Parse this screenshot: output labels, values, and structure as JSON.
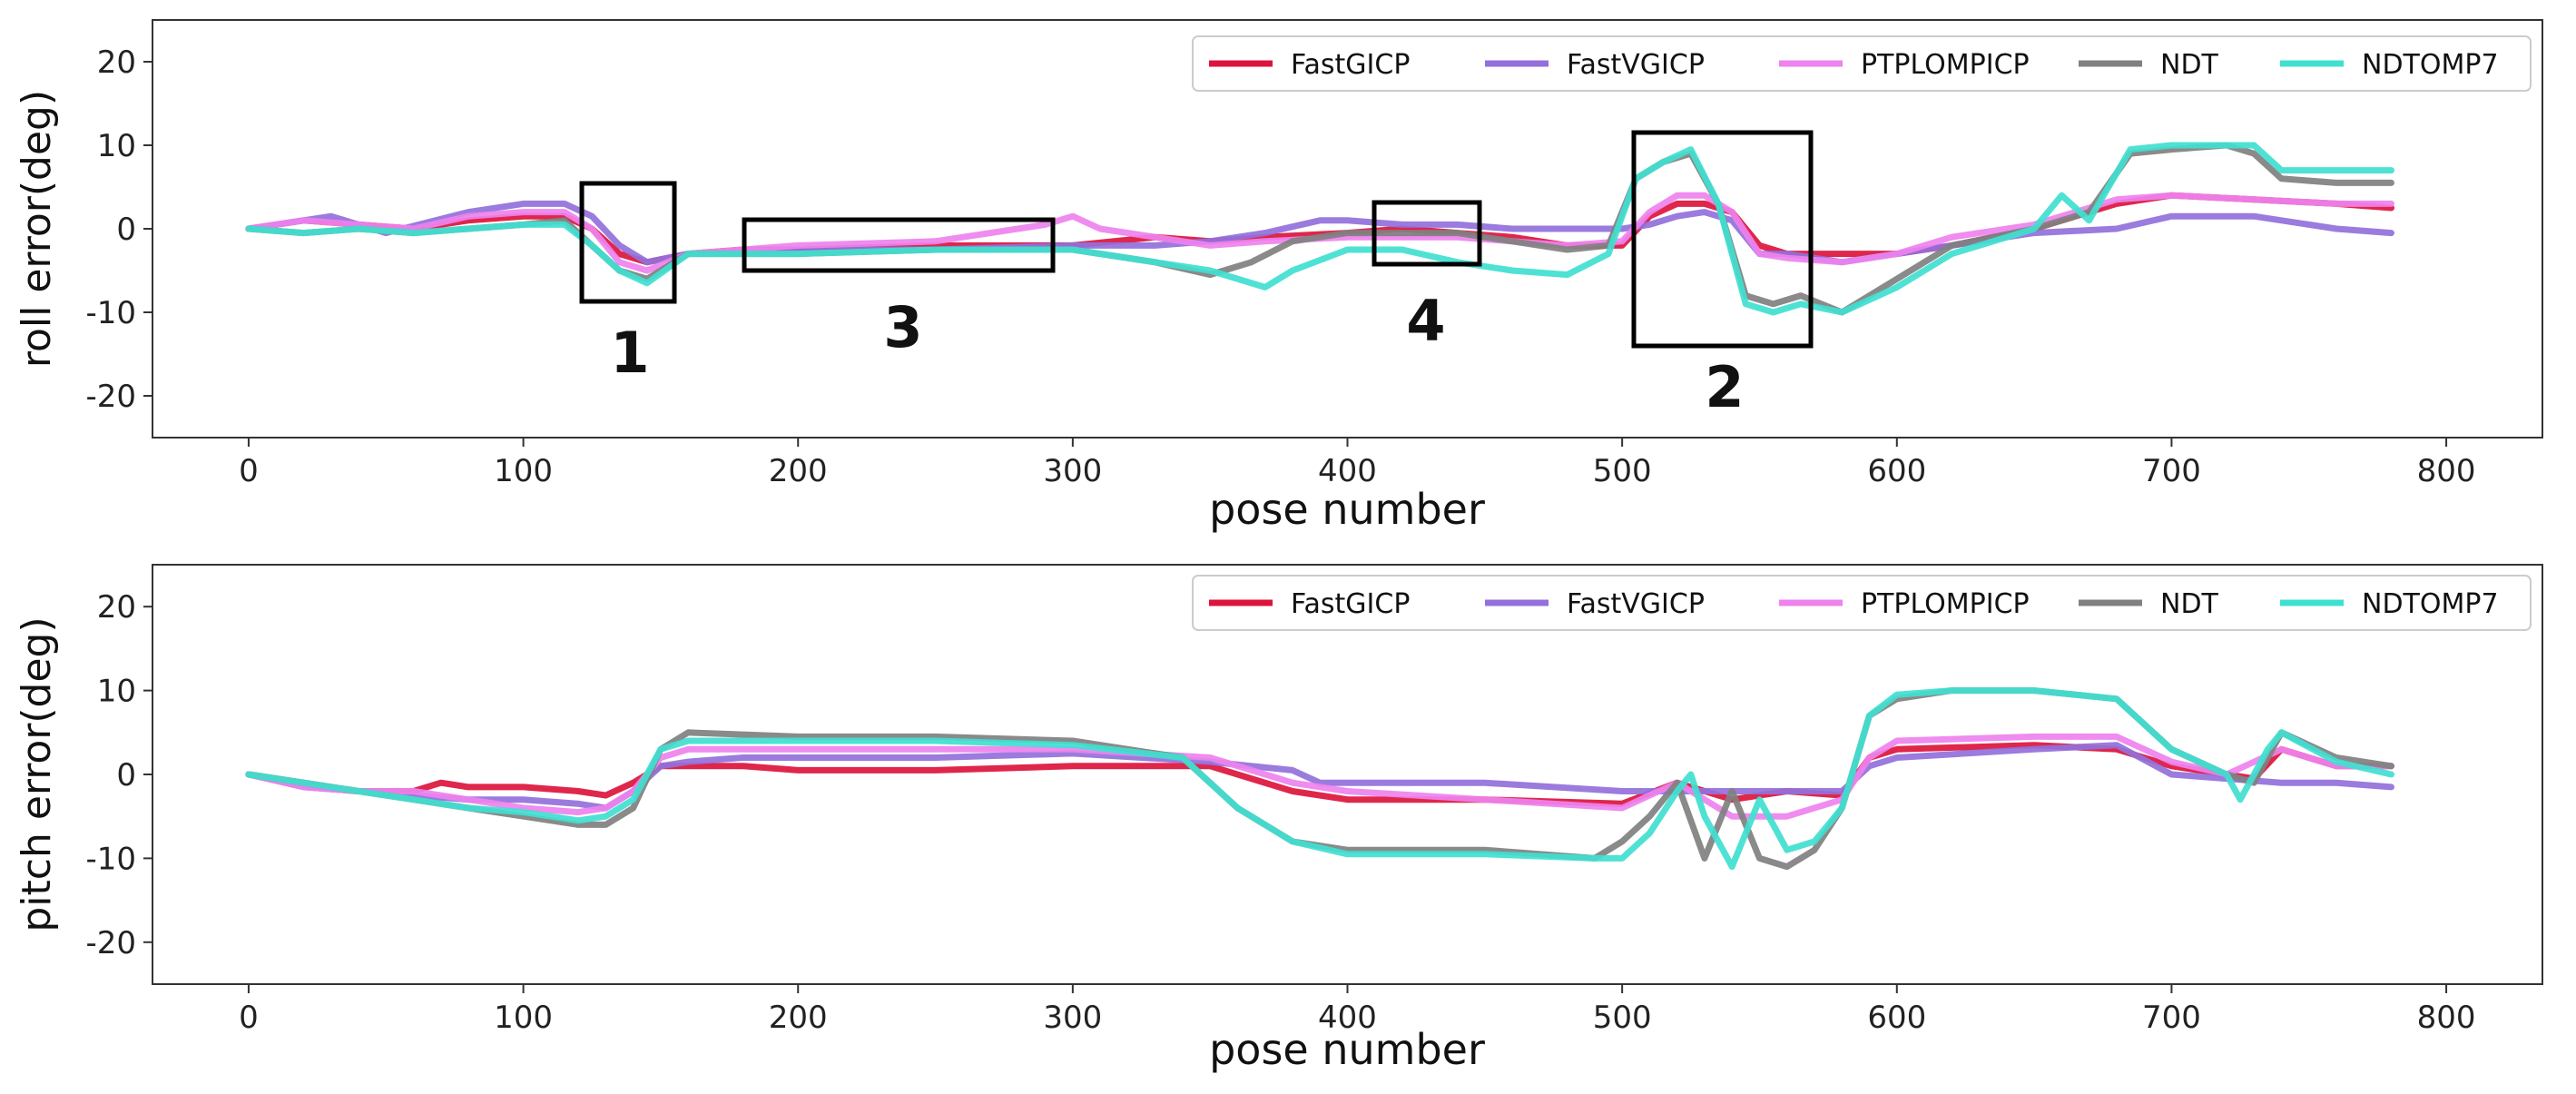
{
  "chart_data": [
    {
      "type": "line",
      "xlabel": "pose number",
      "ylabel": "roll error(deg)",
      "xlim": [
        -35,
        835
      ],
      "ylim": [
        -25,
        25
      ],
      "xticks": [
        0,
        100,
        200,
        300,
        400,
        500,
        600,
        700,
        800
      ],
      "yticks": [
        20,
        10,
        0,
        -10,
        -20
      ],
      "grid": false,
      "legend_position": "top-right",
      "series": [
        {
          "name": "FastGICP",
          "color": "#dc143c",
          "x": [
            0,
            20,
            40,
            60,
            80,
            100,
            115,
            125,
            135,
            145,
            160,
            180,
            200,
            250,
            300,
            330,
            350,
            370,
            400,
            420,
            440,
            460,
            480,
            500,
            510,
            520,
            530,
            540,
            550,
            560,
            580,
            600,
            620,
            650,
            680,
            700,
            730,
            760,
            780
          ],
          "y": [
            0,
            1,
            0.5,
            0,
            1,
            1.5,
            1.5,
            0,
            -3,
            -4,
            -3,
            -2.5,
            -2.5,
            -2,
            -2,
            -1,
            -1.5,
            -1,
            -0.5,
            0,
            -0.5,
            -1,
            -2,
            -2,
            1.5,
            3,
            3,
            2,
            -2,
            -3,
            -3,
            -3,
            -2,
            0,
            3,
            4,
            3.5,
            3,
            2.5
          ]
        },
        {
          "name": "FastVGICP",
          "color": "#9370db",
          "x": [
            0,
            20,
            30,
            50,
            80,
            100,
            115,
            125,
            135,
            145,
            160,
            200,
            250,
            300,
            330,
            350,
            370,
            390,
            400,
            420,
            440,
            460,
            480,
            500,
            510,
            520,
            530,
            540,
            550,
            560,
            580,
            600,
            620,
            650,
            680,
            700,
            730,
            760,
            780
          ],
          "y": [
            0,
            1,
            1.5,
            -0.5,
            2,
            3,
            3,
            1.5,
            -2,
            -4,
            -3,
            -2.5,
            -2.5,
            -2,
            -2,
            -1.5,
            -0.5,
            1,
            1,
            0.5,
            0.5,
            0,
            0,
            0,
            0.5,
            1.5,
            2,
            1,
            -3,
            -3,
            -4,
            -3,
            -2,
            -0.5,
            0,
            1.5,
            1.5,
            0,
            -0.5
          ]
        },
        {
          "name": "PTPLOMPICP",
          "color": "#ee82ee",
          "x": [
            0,
            20,
            40,
            60,
            80,
            100,
            115,
            125,
            135,
            145,
            160,
            200,
            250,
            290,
            300,
            310,
            330,
            350,
            370,
            400,
            420,
            440,
            460,
            480,
            500,
            510,
            520,
            530,
            540,
            550,
            560,
            580,
            600,
            620,
            650,
            680,
            700,
            730,
            760,
            780
          ],
          "y": [
            0,
            1,
            0.5,
            0,
            1.5,
            2,
            2,
            0,
            -4,
            -5,
            -3,
            -2,
            -1.5,
            0.5,
            1.5,
            0,
            -1,
            -2,
            -1.5,
            -1,
            -1,
            -1,
            -1.5,
            -2,
            -1.5,
            2,
            4,
            4,
            2,
            -3,
            -3.5,
            -4,
            -3,
            -1,
            0.5,
            3.5,
            4,
            3.5,
            3,
            3
          ]
        },
        {
          "name": "NDT",
          "color": "#808080",
          "x": [
            0,
            20,
            40,
            60,
            80,
            100,
            115,
            125,
            135,
            145,
            160,
            200,
            250,
            300,
            330,
            350,
            365,
            380,
            400,
            420,
            440,
            460,
            480,
            495,
            505,
            515,
            525,
            535,
            545,
            555,
            565,
            580,
            600,
            620,
            650,
            670,
            685,
            700,
            720,
            730,
            740,
            760,
            780
          ],
          "y": [
            0,
            -0.5,
            0,
            -0.5,
            0,
            0.5,
            1,
            -2,
            -5,
            -6,
            -3,
            -3,
            -2.5,
            -2.5,
            -4,
            -5.5,
            -4,
            -1.5,
            -0.5,
            -0.5,
            -0.5,
            -1.5,
            -2.5,
            -2,
            6,
            8,
            9,
            3,
            -8,
            -9,
            -8,
            -10,
            -6,
            -2,
            0,
            2,
            9,
            9.5,
            10,
            9,
            6,
            5.5,
            5.5
          ]
        },
        {
          "name": "NDTOMP7",
          "color": "#40e0d0",
          "x": [
            0,
            20,
            40,
            60,
            80,
            100,
            115,
            125,
            135,
            145,
            160,
            200,
            250,
            300,
            330,
            350,
            370,
            380,
            400,
            420,
            440,
            460,
            480,
            495,
            505,
            515,
            525,
            535,
            545,
            555,
            565,
            580,
            600,
            620,
            650,
            660,
            670,
            685,
            700,
            720,
            730,
            740,
            760,
            780
          ],
          "y": [
            0,
            -0.5,
            0,
            -0.5,
            0,
            0.5,
            0.5,
            -2,
            -5,
            -6.5,
            -3,
            -3,
            -2.5,
            -2.5,
            -4,
            -5,
            -7,
            -5,
            -2.5,
            -2.5,
            -4,
            -5,
            -5.5,
            -3,
            6,
            8,
            9.5,
            3,
            -9,
            -10,
            -9,
            -10,
            -7,
            -3,
            0,
            4,
            1,
            9.5,
            10,
            10,
            10,
            7,
            7,
            7
          ]
        }
      ],
      "annotations": [
        "1",
        "2",
        "3",
        "4"
      ]
    },
    {
      "type": "line",
      "xlabel": "pose number",
      "ylabel": "pitch error(deg)",
      "xlim": [
        -35,
        835
      ],
      "ylim": [
        -25,
        25
      ],
      "xticks": [
        0,
        100,
        200,
        300,
        400,
        500,
        600,
        700,
        800
      ],
      "yticks": [
        20,
        10,
        0,
        -10,
        -20
      ],
      "grid": false,
      "legend_position": "top-right",
      "series": [
        {
          "name": "FastGICP",
          "color": "#dc143c",
          "x": [
            0,
            20,
            40,
            60,
            70,
            80,
            100,
            120,
            130,
            140,
            150,
            160,
            180,
            200,
            250,
            300,
            350,
            380,
            400,
            450,
            500,
            520,
            540,
            560,
            580,
            590,
            600,
            650,
            680,
            700,
            720,
            730,
            740,
            760,
            780
          ],
          "y": [
            0,
            -1,
            -2,
            -2,
            -1,
            -1.5,
            -1.5,
            -2,
            -2.5,
            -1,
            1,
            1,
            1,
            0.5,
            0.5,
            1,
            1,
            -2,
            -3,
            -3,
            -3.5,
            -1,
            -3,
            -2,
            -2.5,
            2,
            3,
            3.5,
            3,
            1,
            0,
            -0.5,
            3,
            1,
            1
          ]
        },
        {
          "name": "FastVGICP",
          "color": "#9370db",
          "x": [
            0,
            20,
            40,
            60,
            80,
            100,
            120,
            130,
            140,
            150,
            160,
            180,
            200,
            250,
            300,
            350,
            380,
            390,
            400,
            450,
            500,
            520,
            540,
            560,
            580,
            590,
            600,
            650,
            680,
            700,
            720,
            740,
            760,
            780
          ],
          "y": [
            0,
            -1.5,
            -2,
            -2.5,
            -3,
            -3,
            -3.5,
            -4,
            -2,
            1,
            1.5,
            2,
            2,
            2,
            2.5,
            1.5,
            0.5,
            -1,
            -1,
            -1,
            -2,
            -2,
            -2,
            -2,
            -2,
            1,
            2,
            3,
            3.5,
            0,
            -0.5,
            -1,
            -1,
            -1.5
          ]
        },
        {
          "name": "PTPLOMPICP",
          "color": "#ee82ee",
          "x": [
            0,
            20,
            40,
            60,
            80,
            100,
            120,
            130,
            140,
            150,
            160,
            200,
            250,
            300,
            350,
            380,
            400,
            450,
            500,
            520,
            540,
            560,
            580,
            590,
            600,
            650,
            680,
            700,
            720,
            740,
            760,
            780
          ],
          "y": [
            0,
            -1.5,
            -2,
            -2,
            -3,
            -4,
            -4.5,
            -4,
            -2,
            2,
            3,
            3,
            3,
            3,
            2,
            -1,
            -2,
            -3,
            -4,
            -1,
            -5,
            -5,
            -3,
            2,
            4,
            4.5,
            4.5,
            1.5,
            0,
            3,
            1,
            1
          ]
        },
        {
          "name": "NDT",
          "color": "#808080",
          "x": [
            0,
            20,
            40,
            60,
            80,
            100,
            120,
            130,
            140,
            150,
            160,
            200,
            250,
            300,
            340,
            360,
            380,
            400,
            450,
            490,
            500,
            510,
            520,
            530,
            540,
            550,
            560,
            570,
            580,
            590,
            600,
            620,
            650,
            680,
            700,
            720,
            730,
            740,
            760,
            780
          ],
          "y": [
            0,
            -1,
            -2,
            -3,
            -4,
            -5,
            -6,
            -6,
            -4,
            3,
            5,
            4.5,
            4.5,
            4,
            2,
            -4,
            -8,
            -9,
            -9,
            -10,
            -8,
            -5,
            -1,
            -10,
            -2,
            -10,
            -11,
            -9,
            -4,
            7,
            9,
            10,
            10,
            9,
            3,
            0,
            -1,
            5,
            2,
            1
          ]
        },
        {
          "name": "NDTOMP7",
          "color": "#40e0d0",
          "x": [
            0,
            20,
            40,
            60,
            80,
            100,
            120,
            130,
            140,
            150,
            160,
            200,
            250,
            300,
            340,
            360,
            380,
            400,
            450,
            490,
            500,
            510,
            520,
            525,
            530,
            540,
            550,
            560,
            570,
            580,
            590,
            600,
            620,
            650,
            680,
            700,
            720,
            725,
            735,
            740,
            760,
            780
          ],
          "y": [
            0,
            -1,
            -2,
            -3,
            -4,
            -4.5,
            -5.5,
            -5,
            -3,
            3,
            4,
            4,
            4,
            3.5,
            2,
            -4,
            -8,
            -9.5,
            -9.5,
            -10,
            -10,
            -7,
            -2,
            0,
            -5,
            -11,
            -3,
            -9,
            -8,
            -4,
            7,
            9.5,
            10,
            10,
            9,
            3,
            0,
            -3,
            3,
            5,
            1.5,
            0
          ]
        }
      ]
    }
  ]
}
